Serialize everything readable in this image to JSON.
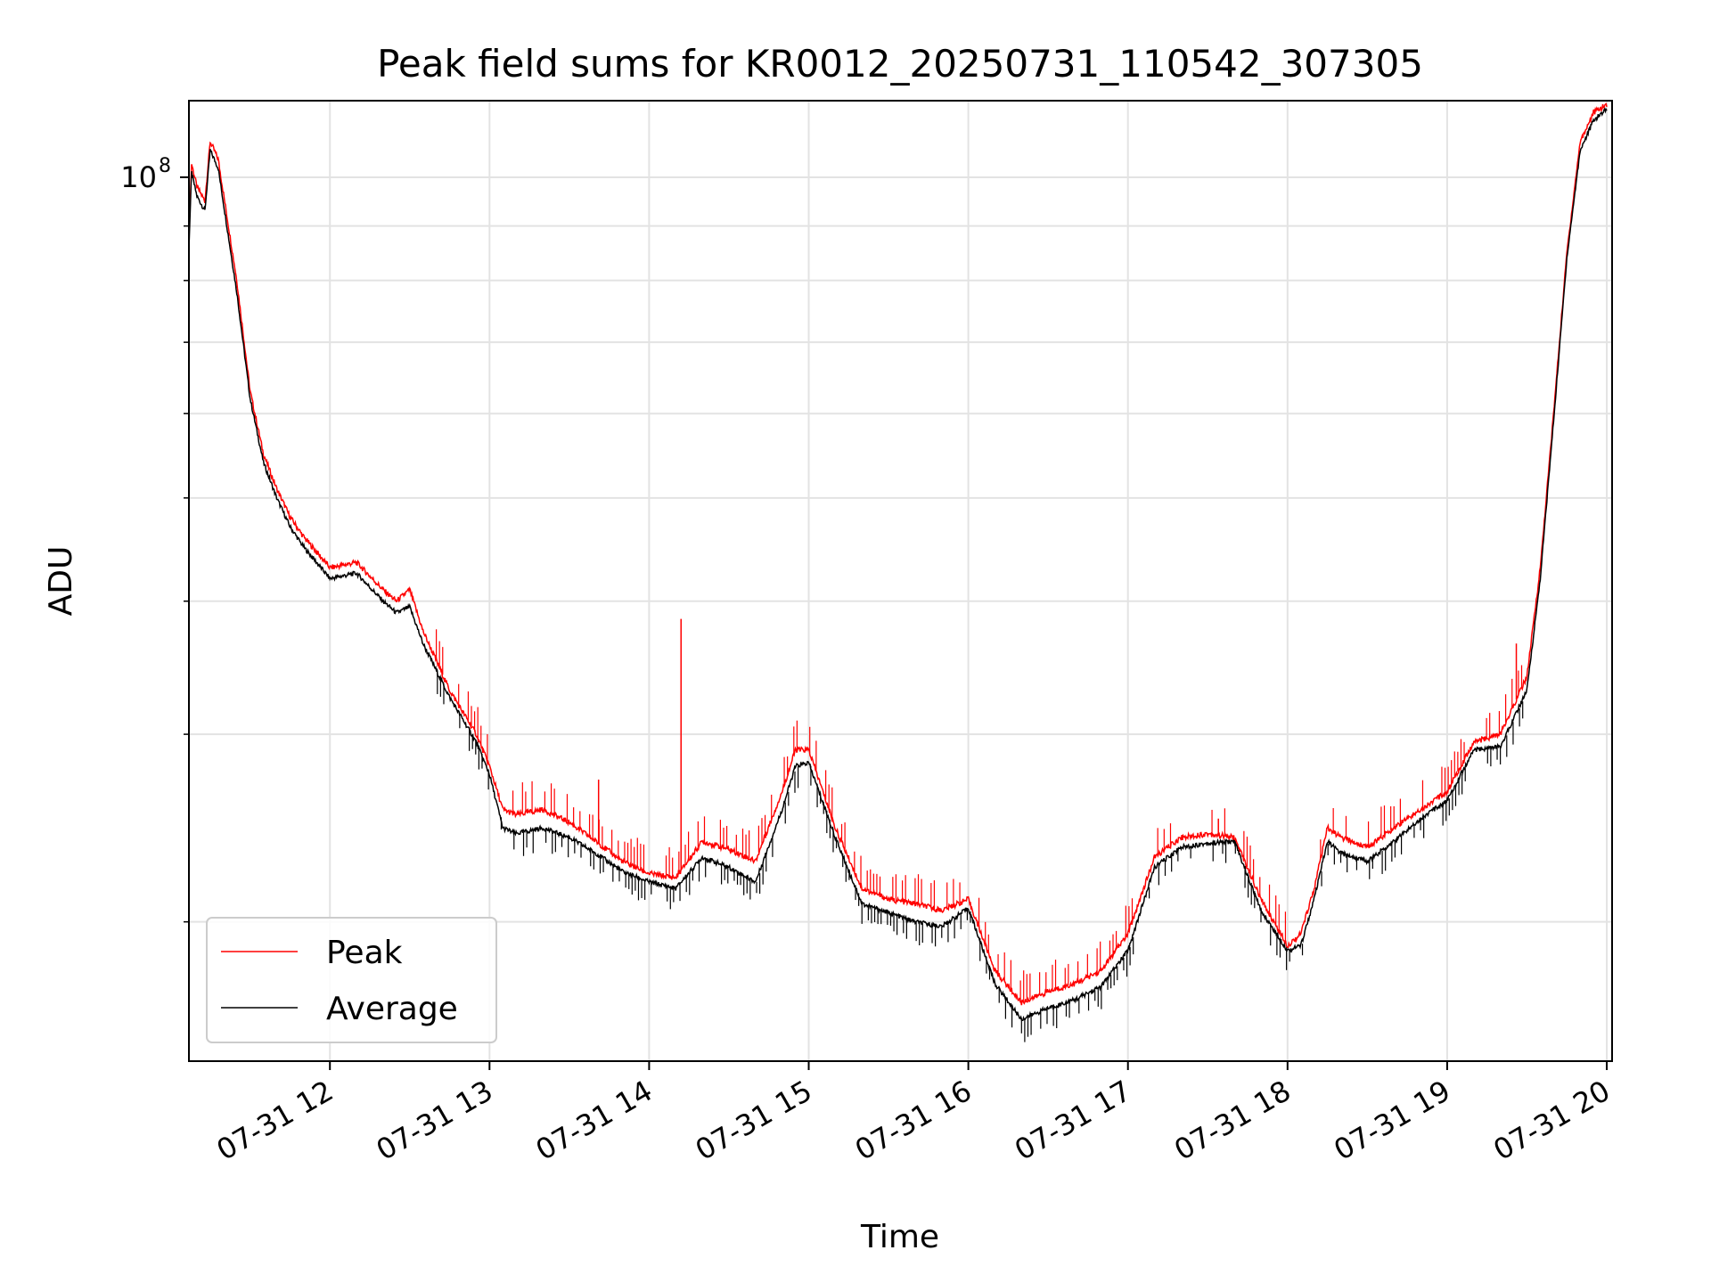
{
  "chart_data": {
    "type": "line",
    "title": "Peak field sums for KR0012_20250731_110542_307305",
    "xlabel": "Time",
    "ylabel": "ADU",
    "y_scale": "log",
    "grid": true,
    "legend_placement": "lower-left",
    "x_ticks": [
      "07-31 12",
      "07-31 13",
      "07-31 14",
      "07-31 15",
      "07-31 16",
      "07-31 17",
      "07-31 18",
      "07-31 19",
      "07-31 20"
    ],
    "y_ticks": [
      {
        "label": "10",
        "exponent": "8",
        "value": 100000000
      }
    ],
    "xlim": [
      "2025-07-31 11:07",
      "2025-07-31 20:02"
    ],
    "ylim": [
      14800000,
      118000000
    ],
    "series": [
      {
        "name": "Peak",
        "color": "#ff0000",
        "points": [
          [
            "2025-07-31 11:07",
            88000000
          ],
          [
            "2025-07-31 11:08",
            103000000
          ],
          [
            "2025-07-31 11:10",
            98000000
          ],
          [
            "2025-07-31 11:13",
            95000000
          ],
          [
            "2025-07-31 11:15",
            108000000
          ],
          [
            "2025-07-31 11:18",
            104000000
          ],
          [
            "2025-07-31 11:25",
            80000000
          ],
          [
            "2025-07-31 11:30",
            63000000
          ],
          [
            "2025-07-31 11:35",
            55000000
          ],
          [
            "2025-07-31 11:40",
            51000000
          ],
          [
            "2025-07-31 11:45",
            48000000
          ],
          [
            "2025-07-31 11:50",
            46000000
          ],
          [
            "2025-07-31 11:55",
            44500000
          ],
          [
            "2025-07-31 12:00",
            43000000
          ],
          [
            "2025-07-31 12:10",
            43500000
          ],
          [
            "2025-07-31 12:20",
            41000000
          ],
          [
            "2025-07-31 12:25",
            40000000
          ],
          [
            "2025-07-31 12:30",
            41000000
          ],
          [
            "2025-07-31 12:35",
            37500000
          ],
          [
            "2025-07-31 12:45",
            33000000
          ],
          [
            "2025-07-31 12:55",
            30000000
          ],
          [
            "2025-07-31 13:00",
            28000000
          ],
          [
            "2025-07-31 13:05",
            25500000
          ],
          [
            "2025-07-31 13:10",
            25200000
          ],
          [
            "2025-07-31 13:20",
            25500000
          ],
          [
            "2025-07-31 13:30",
            24800000
          ],
          [
            "2025-07-31 13:40",
            23800000
          ],
          [
            "2025-07-31 13:50",
            22800000
          ],
          [
            "2025-07-31 14:00",
            22200000
          ],
          [
            "2025-07-31 14:10",
            22000000
          ],
          [
            "2025-07-31 14:20",
            23800000
          ],
          [
            "2025-07-31 14:30",
            23400000
          ],
          [
            "2025-07-31 14:40",
            22800000
          ],
          [
            "2025-07-31 14:50",
            26500000
          ],
          [
            "2025-07-31 14:55",
            29000000
          ],
          [
            "2025-07-31 15:00",
            29000000
          ],
          [
            "2025-07-31 15:10",
            24500000
          ],
          [
            "2025-07-31 15:20",
            21500000
          ],
          [
            "2025-07-31 15:30",
            21000000
          ],
          [
            "2025-07-31 15:40",
            20800000
          ],
          [
            "2025-07-31 15:50",
            20500000
          ],
          [
            "2025-07-31 16:00",
            21000000
          ],
          [
            "2025-07-31 16:10",
            18000000
          ],
          [
            "2025-07-31 16:20",
            16800000
          ],
          [
            "2025-07-31 16:30",
            17200000
          ],
          [
            "2025-07-31 16:40",
            17500000
          ],
          [
            "2025-07-31 16:50",
            18000000
          ],
          [
            "2025-07-31 17:00",
            19500000
          ],
          [
            "2025-07-31 17:10",
            23000000
          ],
          [
            "2025-07-31 17:20",
            24000000
          ],
          [
            "2025-07-31 17:30",
            24200000
          ],
          [
            "2025-07-31 17:40",
            24000000
          ],
          [
            "2025-07-31 17:50",
            21000000
          ],
          [
            "2025-07-31 18:00",
            19000000
          ],
          [
            "2025-07-31 18:05",
            19500000
          ],
          [
            "2025-07-31 18:10",
            21500000
          ],
          [
            "2025-07-31 18:15",
            24500000
          ],
          [
            "2025-07-31 18:20",
            24000000
          ],
          [
            "2025-07-31 18:30",
            23500000
          ],
          [
            "2025-07-31 18:40",
            24500000
          ],
          [
            "2025-07-31 18:50",
            25500000
          ],
          [
            "2025-07-31 19:00",
            26500000
          ],
          [
            "2025-07-31 19:10",
            29500000
          ],
          [
            "2025-07-31 19:20",
            30000000
          ],
          [
            "2025-07-31 19:30",
            34000000
          ],
          [
            "2025-07-31 19:35",
            43000000
          ],
          [
            "2025-07-31 19:40",
            60000000
          ],
          [
            "2025-07-31 19:45",
            85000000
          ],
          [
            "2025-07-31 19:50",
            108000000
          ],
          [
            "2025-07-31 19:55",
            115000000
          ],
          [
            "2025-07-31 20:00",
            117000000
          ]
        ]
      },
      {
        "name": "Average",
        "color": "#000000",
        "points": [
          [
            "2025-07-31 11:07",
            86000000
          ],
          [
            "2025-07-31 11:08",
            101000000
          ],
          [
            "2025-07-31 11:10",
            96000000
          ],
          [
            "2025-07-31 11:13",
            93000000
          ],
          [
            "2025-07-31 11:15",
            106000000
          ],
          [
            "2025-07-31 11:18",
            102000000
          ],
          [
            "2025-07-31 11:25",
            78000000
          ],
          [
            "2025-07-31 11:30",
            62000000
          ],
          [
            "2025-07-31 11:35",
            54000000
          ],
          [
            "2025-07-31 11:40",
            50000000
          ],
          [
            "2025-07-31 11:45",
            47000000
          ],
          [
            "2025-07-31 11:50",
            45000000
          ],
          [
            "2025-07-31 11:55",
            43500000
          ],
          [
            "2025-07-31 12:00",
            42000000
          ],
          [
            "2025-07-31 12:10",
            42500000
          ],
          [
            "2025-07-31 12:20",
            40000000
          ],
          [
            "2025-07-31 12:25",
            39000000
          ],
          [
            "2025-07-31 12:30",
            39500000
          ],
          [
            "2025-07-31 12:35",
            36500000
          ],
          [
            "2025-07-31 12:45",
            32500000
          ],
          [
            "2025-07-31 12:55",
            29500000
          ],
          [
            "2025-07-31 13:00",
            27500000
          ],
          [
            "2025-07-31 13:05",
            24500000
          ],
          [
            "2025-07-31 13:10",
            24200000
          ],
          [
            "2025-07-31 13:20",
            24500000
          ],
          [
            "2025-07-31 13:30",
            24000000
          ],
          [
            "2025-07-31 13:40",
            23200000
          ],
          [
            "2025-07-31 13:50",
            22300000
          ],
          [
            "2025-07-31 14:00",
            21800000
          ],
          [
            "2025-07-31 14:10",
            21500000
          ],
          [
            "2025-07-31 14:20",
            23000000
          ],
          [
            "2025-07-31 14:30",
            22500000
          ],
          [
            "2025-07-31 14:40",
            21800000
          ],
          [
            "2025-07-31 14:50",
            25500000
          ],
          [
            "2025-07-31 14:55",
            28000000
          ],
          [
            "2025-07-31 15:00",
            28200000
          ],
          [
            "2025-07-31 15:10",
            24000000
          ],
          [
            "2025-07-31 15:20",
            20800000
          ],
          [
            "2025-07-31 15:30",
            20400000
          ],
          [
            "2025-07-31 15:40",
            20000000
          ],
          [
            "2025-07-31 15:50",
            19800000
          ],
          [
            "2025-07-31 16:00",
            20600000
          ],
          [
            "2025-07-31 16:10",
            17500000
          ],
          [
            "2025-07-31 16:20",
            16200000
          ],
          [
            "2025-07-31 16:30",
            16600000
          ],
          [
            "2025-07-31 16:40",
            16900000
          ],
          [
            "2025-07-31 16:50",
            17400000
          ],
          [
            "2025-07-31 17:00",
            18800000
          ],
          [
            "2025-07-31 17:10",
            22500000
          ],
          [
            "2025-07-31 17:20",
            23500000
          ],
          [
            "2025-07-31 17:30",
            23700000
          ],
          [
            "2025-07-31 17:40",
            23800000
          ],
          [
            "2025-07-31 17:50",
            20500000
          ],
          [
            "2025-07-31 18:00",
            18800000
          ],
          [
            "2025-07-31 18:05",
            19000000
          ],
          [
            "2025-07-31 18:10",
            21000000
          ],
          [
            "2025-07-31 18:15",
            23800000
          ],
          [
            "2025-07-31 18:20",
            23200000
          ],
          [
            "2025-07-31 18:30",
            22800000
          ],
          [
            "2025-07-31 18:40",
            23800000
          ],
          [
            "2025-07-31 18:50",
            25000000
          ],
          [
            "2025-07-31 19:00",
            26000000
          ],
          [
            "2025-07-31 19:10",
            29000000
          ],
          [
            "2025-07-31 19:20",
            29200000
          ],
          [
            "2025-07-31 19:30",
            33000000
          ],
          [
            "2025-07-31 19:35",
            42000000
          ],
          [
            "2025-07-31 19:40",
            59000000
          ],
          [
            "2025-07-31 19:45",
            84000000
          ],
          [
            "2025-07-31 19:50",
            106000000
          ],
          [
            "2025-07-31 19:55",
            113000000
          ],
          [
            "2025-07-31 20:00",
            116000000
          ]
        ]
      }
    ],
    "annotations": [
      {
        "series": "Peak",
        "time": "2025-07-31 14:12",
        "value": 38500000
      },
      {
        "series": "Peak",
        "time": "2025-07-31 13:41",
        "value": 27200000
      },
      {
        "series": "Peak",
        "time": "2025-07-31 19:26",
        "value": 36500000
      },
      {
        "series": "Peak",
        "time": "2025-07-31 17:34",
        "value": 25000000
      }
    ]
  }
}
